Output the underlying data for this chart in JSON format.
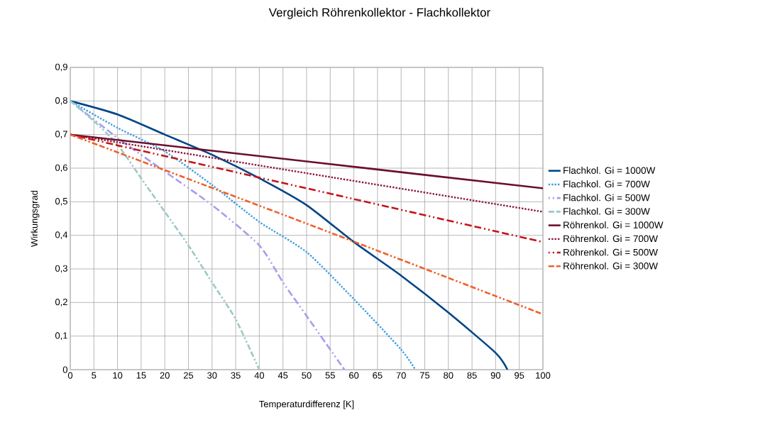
{
  "chart_data": {
    "type": "line",
    "title": "Vergleich Röhrenkollektor - Flachkollektor",
    "xlabel": "Temperaturdifferenz [K]",
    "ylabel": "Wirkungsgrad",
    "xlim": [
      0,
      100
    ],
    "ylim": [
      0,
      0.9
    ],
    "xticks": [
      0,
      5,
      10,
      15,
      20,
      25,
      30,
      35,
      40,
      45,
      50,
      55,
      60,
      65,
      70,
      75,
      80,
      85,
      90,
      95,
      100
    ],
    "yticks": [
      {
        "value": 0,
        "label": "0"
      },
      {
        "value": 0.1,
        "label": "0,1"
      },
      {
        "value": 0.2,
        "label": "0,2"
      },
      {
        "value": 0.3,
        "label": "0,3"
      },
      {
        "value": 0.4,
        "label": "0,4"
      },
      {
        "value": 0.5,
        "label": "0,5"
      },
      {
        "value": 0.6,
        "label": "0,6"
      },
      {
        "value": 0.7,
        "label": "0,7"
      },
      {
        "value": 0.8,
        "label": "0,8"
      },
      {
        "value": 0.9,
        "label": "0,9"
      }
    ],
    "grid": true,
    "legend": "right",
    "marker": "none",
    "series": [
      {
        "name": "Flachkol. Gi = 1000W",
        "color": "#004586",
        "line_style": "solid",
        "x": [
          0,
          10,
          20,
          30,
          40,
          50,
          60,
          70,
          80,
          90,
          92.5
        ],
        "values": [
          0.8,
          0.76,
          0.7,
          0.64,
          0.57,
          0.49,
          0.38,
          0.28,
          0.17,
          0.05,
          0
        ]
      },
      {
        "name": "Flachkol. Gi = 700W",
        "color": "#3c9ee0",
        "line_style": "dotted",
        "x": [
          0,
          10,
          20,
          30,
          40,
          50,
          60,
          70,
          73
        ],
        "values": [
          0.8,
          0.72,
          0.65,
          0.55,
          0.44,
          0.35,
          0.21,
          0.06,
          0
        ]
      },
      {
        "name": "Flachkol. Gi = 500W",
        "color": "#a49ef0",
        "line_style": "dashdot",
        "x": [
          0,
          10,
          20,
          30,
          40,
          45,
          50,
          58
        ],
        "values": [
          0.8,
          0.69,
          0.59,
          0.49,
          0.37,
          0.26,
          0.16,
          0
        ]
      },
      {
        "name": "Flachkol. Gi = 300W",
        "color": "#9dc8c8",
        "line_style": "dashdotdot",
        "x": [
          0,
          5,
          10,
          15,
          20,
          25,
          30,
          35,
          40
        ],
        "values": [
          0.8,
          0.74,
          0.67,
          0.57,
          0.47,
          0.37,
          0.26,
          0.15,
          0
        ]
      },
      {
        "name": "Röhrenkol. Gi = 1000W",
        "color": "#6b0f2c",
        "line_style": "solid",
        "x": [
          0,
          50,
          100
        ],
        "values": [
          0.7,
          0.62,
          0.54
        ]
      },
      {
        "name": "Röhrenkol. Gi = 700W",
        "color": "#8b1a3a",
        "line_style": "dotted",
        "x": [
          0,
          50,
          100
        ],
        "values": [
          0.7,
          0.585,
          0.47
        ]
      },
      {
        "name": "Röhrenkol. Gi = 500W",
        "color": "#c5141a",
        "line_style": "dashdot",
        "x": [
          0,
          50,
          100
        ],
        "values": [
          0.7,
          0.54,
          0.38
        ]
      },
      {
        "name": "Röhrenkol. Gi = 300W",
        "color": "#f0602a",
        "line_style": "dashdotdot",
        "x": [
          0,
          50,
          100
        ],
        "values": [
          0.7,
          0.435,
          0.165
        ]
      }
    ]
  }
}
